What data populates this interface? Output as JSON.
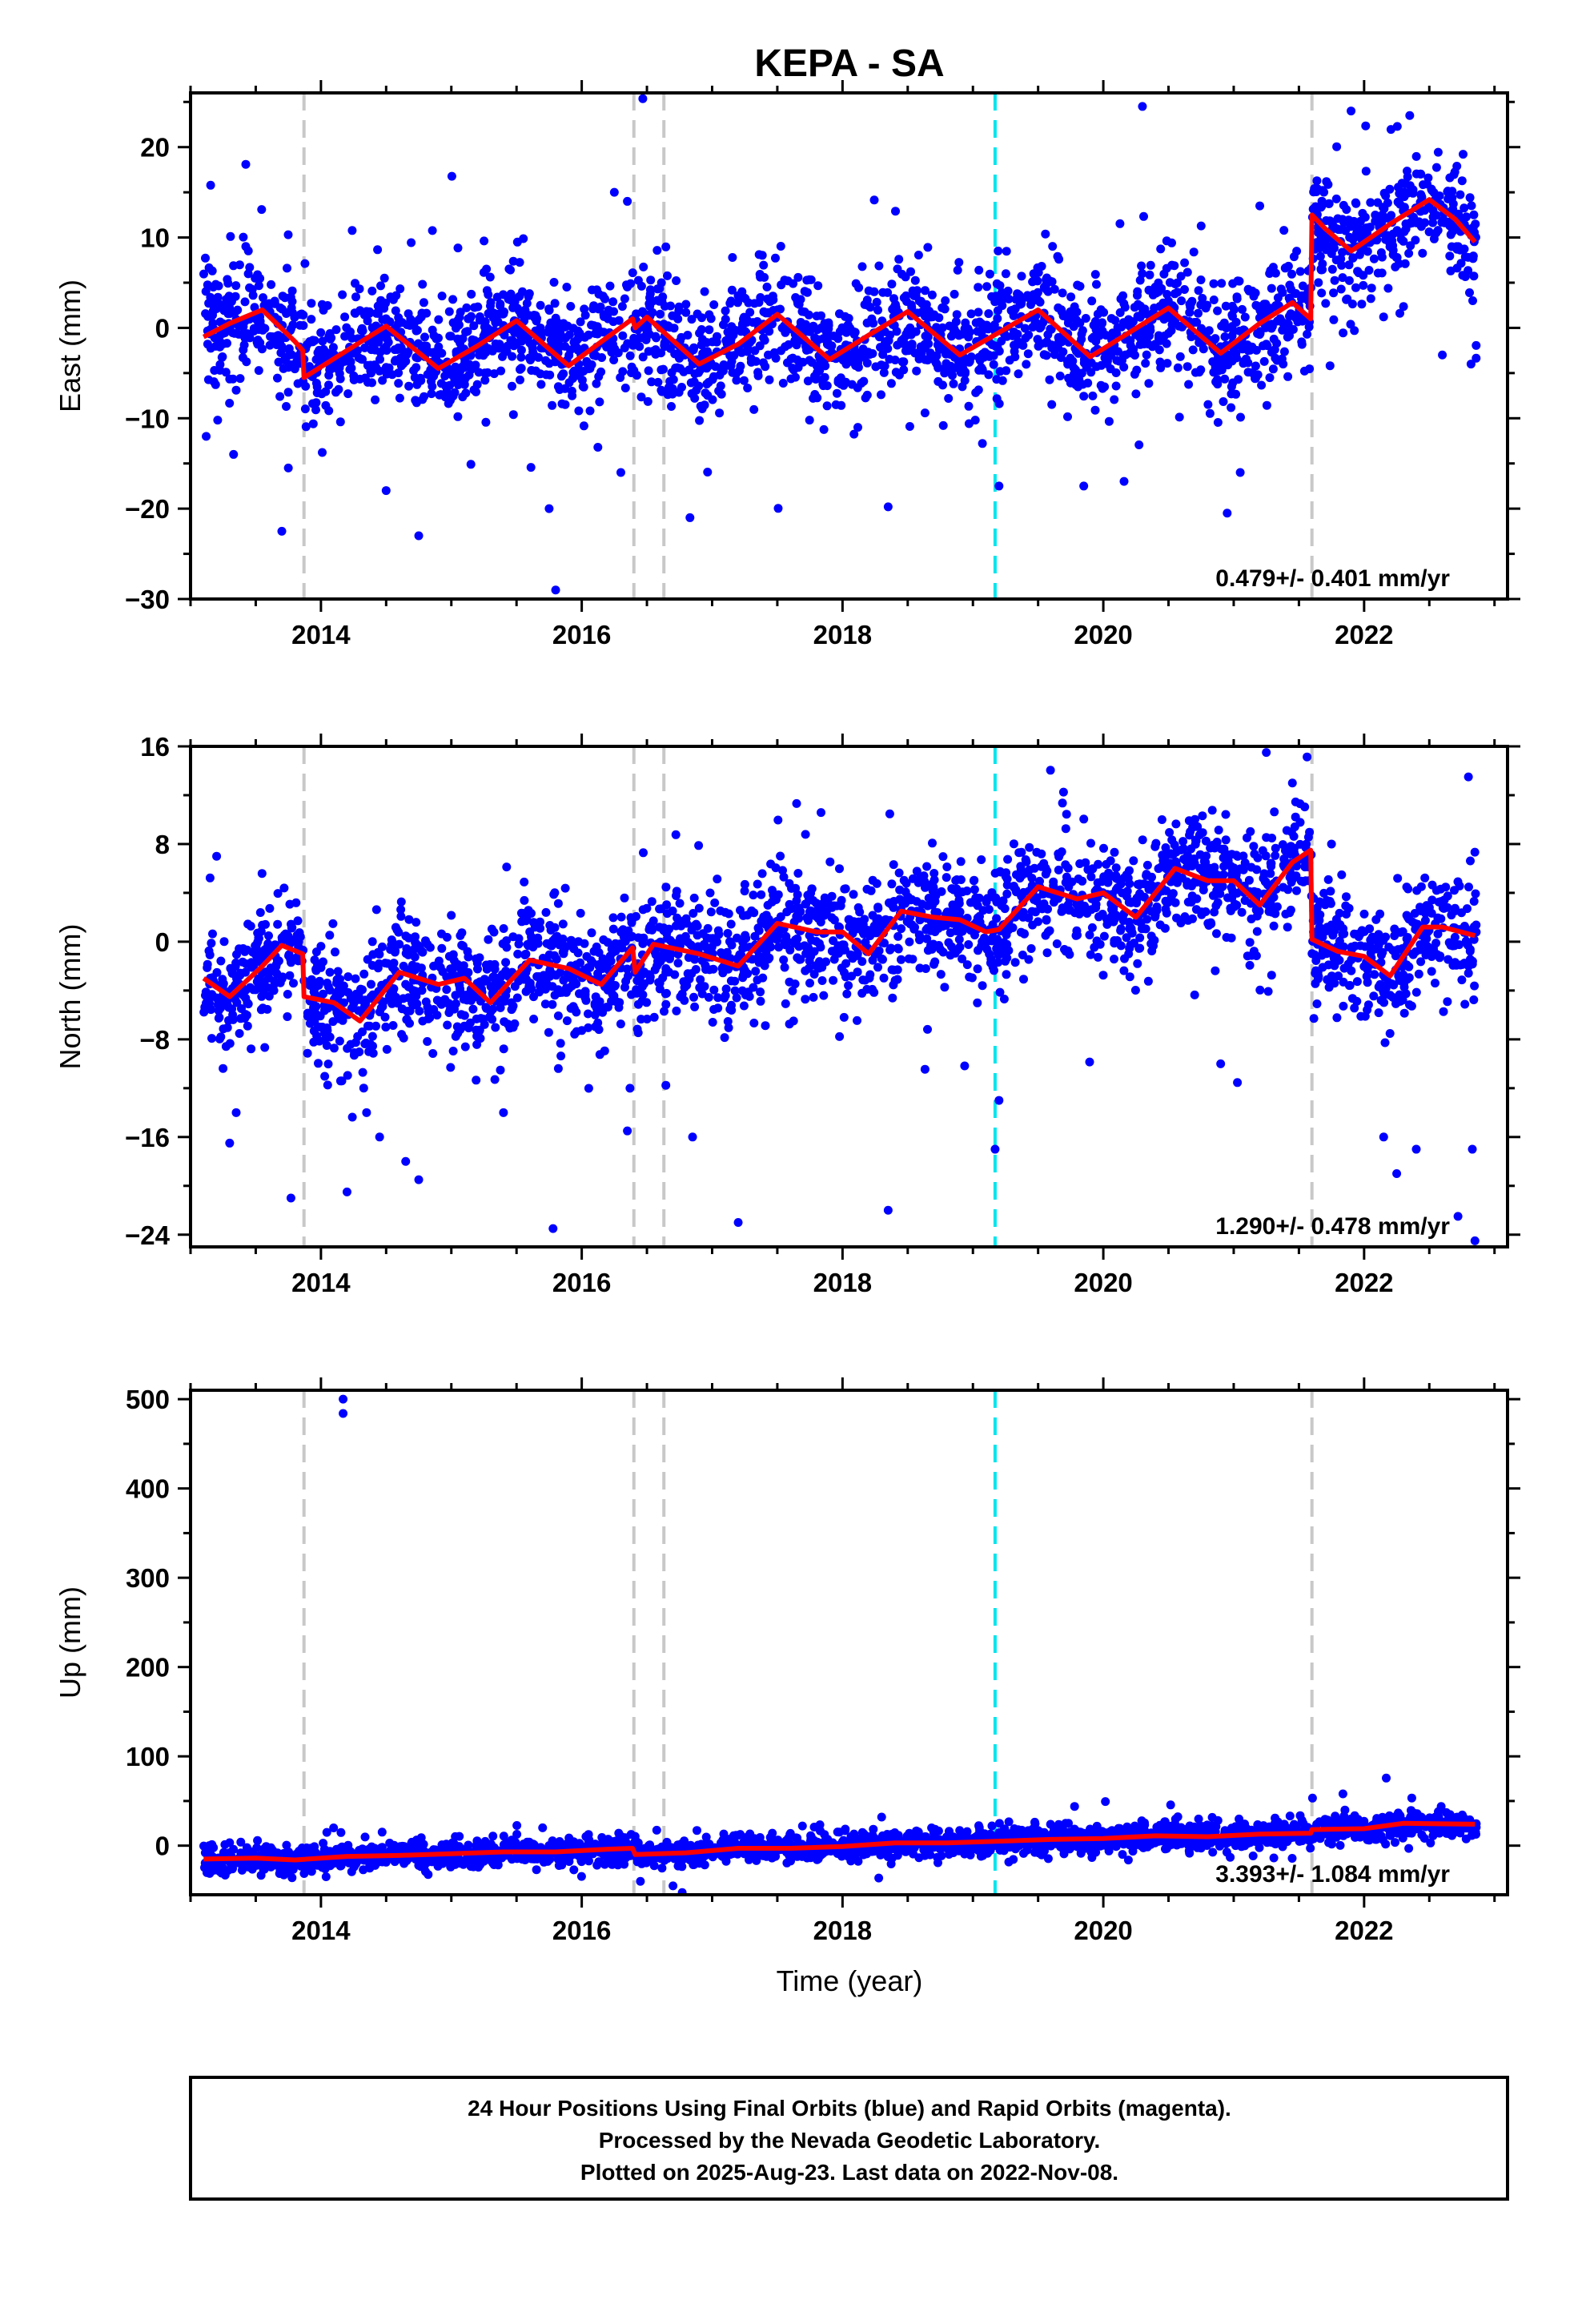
{
  "title": "KEPA - SA",
  "xlabel": "Time (year)",
  "footer": {
    "lines": [
      "24 Hour Positions Using Final Orbits (blue) and Rapid Orbits (magenta).",
      "Processed by the Nevada Geodetic Laboratory.",
      "Plotted on 2025-Aug-23. Last data on 2022-Nov-08."
    ]
  },
  "colors": {
    "points": "#0000ff",
    "model": "#ff0000",
    "event_gray": "#c8c8c8",
    "event_cyan": "#00e5ee"
  },
  "chart_data": [
    {
      "type": "scatter",
      "ylabel": "East (mm)",
      "xlim": [
        2013.0,
        2023.1
      ],
      "ylim": [
        -30,
        26
      ],
      "xticks": [
        2014,
        2016,
        2018,
        2020,
        2022
      ],
      "yticks": [
        -30,
        -20,
        -10,
        0,
        10,
        20
      ],
      "rate": "0.479+/- 0.401 mm/yr",
      "data_range": [
        2013.1,
        2022.86
      ],
      "gray_events": [
        2013.87,
        2016.4,
        2016.63,
        2021.6
      ],
      "cyan_events": [
        2019.17
      ],
      "model": [
        [
          2013.1,
          -1.0
        ],
        [
          2013.3,
          0.5
        ],
        [
          2013.55,
          2.0
        ],
        [
          2013.8,
          -1.5
        ],
        [
          2013.86,
          -2.5
        ],
        [
          2013.87,
          -5.5
        ],
        [
          2014.2,
          -2.5
        ],
        [
          2014.5,
          0.2
        ],
        [
          2014.9,
          -4.5
        ],
        [
          2015.2,
          -2.0
        ],
        [
          2015.5,
          0.8
        ],
        [
          2015.9,
          -4.2
        ],
        [
          2016.2,
          -1.0
        ],
        [
          2016.39,
          1.0
        ],
        [
          2016.41,
          0.0
        ],
        [
          2016.5,
          1.2
        ],
        [
          2016.9,
          -4.0
        ],
        [
          2017.2,
          -1.8
        ],
        [
          2017.5,
          1.5
        ],
        [
          2017.9,
          -3.5
        ],
        [
          2018.2,
          -0.8
        ],
        [
          2018.5,
          1.8
        ],
        [
          2018.9,
          -3.0
        ],
        [
          2019.2,
          -0.5
        ],
        [
          2019.5,
          2.0
        ],
        [
          2019.9,
          -3.2
        ],
        [
          2020.2,
          -0.5
        ],
        [
          2020.5,
          2.2
        ],
        [
          2020.9,
          -2.8
        ],
        [
          2021.2,
          0.5
        ],
        [
          2021.45,
          2.8
        ],
        [
          2021.59,
          1.0
        ],
        [
          2021.6,
          12.5
        ],
        [
          2021.7,
          11.0
        ],
        [
          2021.9,
          8.5
        ],
        [
          2022.2,
          11.5
        ],
        [
          2022.5,
          14.2
        ],
        [
          2022.7,
          12.0
        ],
        [
          2022.85,
          9.5
        ]
      ],
      "seasonal": {
        "offset": 0.0,
        "amp": 5.5,
        "noise": 3.2,
        "phase": 0.45
      },
      "outliers": [
        [
          2013.12,
          -12
        ],
        [
          2013.33,
          -14
        ],
        [
          2013.7,
          -22.5
        ],
        [
          2013.75,
          -15.5
        ],
        [
          2014.5,
          -18
        ],
        [
          2014.75,
          -23
        ],
        [
          2015.8,
          -29
        ],
        [
          2015.75,
          -20
        ],
        [
          2016.25,
          15
        ],
        [
          2016.35,
          14
        ],
        [
          2016.3,
          -16
        ],
        [
          2016.83,
          -21
        ],
        [
          2018.35,
          -19.8
        ],
        [
          2019.2,
          -17.5
        ],
        [
          2019.85,
          -17.5
        ],
        [
          2020.3,
          24.5
        ],
        [
          2020.95,
          -20.5
        ],
        [
          2021.05,
          -16
        ],
        [
          2021.2,
          13.5
        ],
        [
          2021.9,
          24
        ],
        [
          2022.35,
          23.5
        ],
        [
          2022.6,
          -3
        ],
        [
          2022.82,
          -4
        ]
      ]
    },
    {
      "type": "scatter",
      "ylabel": "North (mm)",
      "xlim": [
        2013.0,
        2023.1
      ],
      "ylim": [
        -25,
        16
      ],
      "xticks": [
        2014,
        2016,
        2018,
        2020,
        2022
      ],
      "yticks": [
        -24,
        -16,
        -8,
        0,
        8,
        16
      ],
      "rate": "1.290+/- 0.478 mm/yr",
      "data_range": [
        2013.1,
        2022.86
      ],
      "gray_events": [
        2013.87,
        2016.4,
        2016.63,
        2021.6
      ],
      "cyan_events": [
        2019.17
      ],
      "model": [
        [
          2013.1,
          -3.0
        ],
        [
          2013.3,
          -4.5
        ],
        [
          2013.55,
          -2.0
        ],
        [
          2013.7,
          -0.3
        ],
        [
          2013.86,
          -1.0
        ],
        [
          2013.87,
          -4.5
        ],
        [
          2014.1,
          -5.0
        ],
        [
          2014.3,
          -6.5
        ],
        [
          2014.6,
          -2.5
        ],
        [
          2014.9,
          -3.5
        ],
        [
          2015.1,
          -3.0
        ],
        [
          2015.3,
          -5.0
        ],
        [
          2015.6,
          -1.5
        ],
        [
          2015.9,
          -2.2
        ],
        [
          2016.15,
          -3.5
        ],
        [
          2016.39,
          -0.5
        ],
        [
          2016.41,
          -2.5
        ],
        [
          2016.55,
          -0.2
        ],
        [
          2016.9,
          -1.0
        ],
        [
          2017.2,
          -2.0
        ],
        [
          2017.5,
          1.5
        ],
        [
          2017.8,
          0.8
        ],
        [
          2018.0,
          0.8
        ],
        [
          2018.2,
          -1.0
        ],
        [
          2018.45,
          2.5
        ],
        [
          2018.7,
          2.0
        ],
        [
          2018.9,
          1.8
        ],
        [
          2019.1,
          0.8
        ],
        [
          2019.2,
          1.0
        ],
        [
          2019.5,
          4.5
        ],
        [
          2019.8,
          3.5
        ],
        [
          2020.0,
          4.0
        ],
        [
          2020.25,
          2.0
        ],
        [
          2020.55,
          6.0
        ],
        [
          2020.8,
          5.0
        ],
        [
          2021.0,
          5.0
        ],
        [
          2021.2,
          3.0
        ],
        [
          2021.45,
          6.5
        ],
        [
          2021.59,
          7.5
        ],
        [
          2021.6,
          0.2
        ],
        [
          2021.8,
          -0.8
        ],
        [
          2022.0,
          -1.2
        ],
        [
          2022.2,
          -2.8
        ],
        [
          2022.45,
          1.2
        ],
        [
          2022.6,
          1.2
        ],
        [
          2022.85,
          0.5
        ]
      ],
      "seasonal": {
        "offset": 0.0,
        "amp": 2.0,
        "noise": 2.4,
        "phase": 0.3
      },
      "outliers": [
        [
          2013.2,
          7
        ],
        [
          2013.3,
          -16.5
        ],
        [
          2013.35,
          -14
        ],
        [
          2013.77,
          -21
        ],
        [
          2014.2,
          -20.5
        ],
        [
          2014.35,
          -14
        ],
        [
          2014.45,
          -16
        ],
        [
          2014.65,
          -18
        ],
        [
          2014.75,
          -19.5
        ],
        [
          2015.4,
          -14
        ],
        [
          2015.78,
          -23.5
        ],
        [
          2016.35,
          -15.5
        ],
        [
          2016.37,
          -12
        ],
        [
          2016.85,
          -16
        ],
        [
          2017.2,
          -23
        ],
        [
          2018.35,
          -22
        ],
        [
          2019.17,
          -17
        ],
        [
          2019.2,
          -13
        ],
        [
          2020.45,
          10
        ],
        [
          2020.9,
          -10
        ],
        [
          2021.25,
          15.5
        ],
        [
          2021.45,
          13
        ],
        [
          2021.75,
          8
        ],
        [
          2022.15,
          -16
        ],
        [
          2022.25,
          -19
        ],
        [
          2022.4,
          -17
        ],
        [
          2022.72,
          -22.5
        ],
        [
          2022.8,
          13.5
        ],
        [
          2022.85,
          -24.5
        ],
        [
          2022.83,
          -17
        ]
      ]
    },
    {
      "type": "scatter",
      "ylabel": "Up (mm)",
      "xlim": [
        2013.0,
        2023.1
      ],
      "ylim": [
        -55,
        510
      ],
      "xticks": [
        2014,
        2016,
        2018,
        2020,
        2022
      ],
      "yticks": [
        0,
        100,
        200,
        300,
        400,
        500
      ],
      "rate": "3.393+/- 1.084 mm/yr",
      "data_range": [
        2013.1,
        2022.86
      ],
      "gray_events": [
        2013.87,
        2016.4,
        2016.63,
        2021.6
      ],
      "cyan_events": [
        2019.17
      ],
      "model": [
        [
          2013.1,
          -15
        ],
        [
          2013.5,
          -14
        ],
        [
          2013.8,
          -16
        ],
        [
          2014.2,
          -12
        ],
        [
          2014.6,
          -11
        ],
        [
          2015.0,
          -9
        ],
        [
          2015.4,
          -7
        ],
        [
          2015.8,
          -7
        ],
        [
          2016.2,
          -4
        ],
        [
          2016.39,
          -3
        ],
        [
          2016.41,
          -10
        ],
        [
          2016.8,
          -8
        ],
        [
          2017.2,
          -3
        ],
        [
          2017.6,
          -3
        ],
        [
          2018.0,
          -1
        ],
        [
          2018.4,
          3
        ],
        [
          2018.8,
          3
        ],
        [
          2019.2,
          5
        ],
        [
          2019.6,
          7
        ],
        [
          2020.0,
          8
        ],
        [
          2020.4,
          11
        ],
        [
          2020.8,
          10
        ],
        [
          2021.2,
          13
        ],
        [
          2021.59,
          14
        ],
        [
          2021.6,
          18
        ],
        [
          2022.0,
          19
        ],
        [
          2022.3,
          25
        ],
        [
          2022.85,
          24
        ]
      ],
      "seasonal": {
        "offset": 0.0,
        "amp": 3.0,
        "noise": 7.0,
        "phase": 0.5
      },
      "outliers": [
        [
          2014.17,
          500
        ],
        [
          2014.17,
          484
        ],
        [
          2016.45,
          -40
        ],
        [
          2016.7,
          -45
        ],
        [
          2018.3,
          32
        ],
        [
          2015.7,
          20
        ]
      ]
    }
  ]
}
